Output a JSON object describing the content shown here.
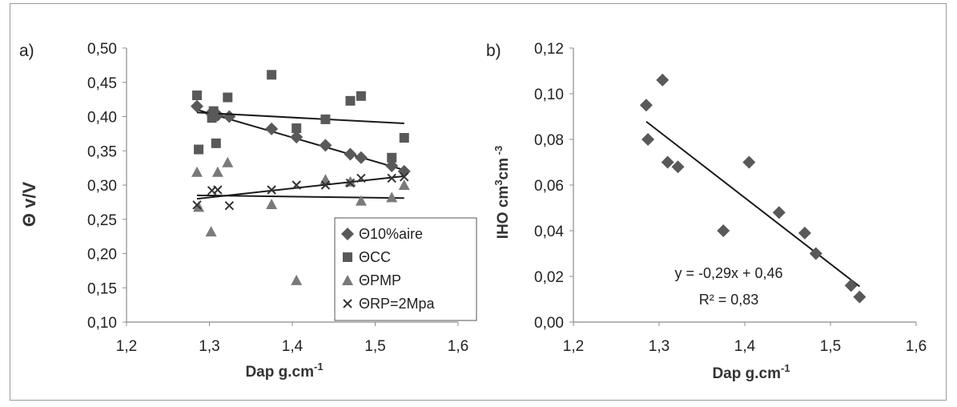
{
  "chart_data": [
    {
      "type": "scatter",
      "panel_label": "a)",
      "xlabel": "Dap g.cm",
      "xlabel_sup": "-1",
      "ylabel": "Θ v/V",
      "xlim": [
        1.2,
        1.6
      ],
      "ylim": [
        0.1,
        0.5
      ],
      "x_ticks": [
        "1,2",
        "1,3",
        "1,4",
        "1,5",
        "1,6"
      ],
      "y_ticks": [
        "0,10",
        "0,15",
        "0,20",
        "0,25",
        "0,30",
        "0,35",
        "0,40",
        "0,45",
        "0,50"
      ],
      "grid": false,
      "legend_position": "bottom-right",
      "series": [
        {
          "name": "Θ10%aire",
          "marker": "diamond",
          "points": [
            [
              1.285,
              0.415
            ],
            [
              1.302,
              0.405
            ],
            [
              1.31,
              0.402
            ],
            [
              1.324,
              0.4
            ],
            [
              1.375,
              0.382
            ],
            [
              1.405,
              0.37
            ],
            [
              1.44,
              0.358
            ],
            [
              1.47,
              0.345
            ],
            [
              1.483,
              0.34
            ],
            [
              1.52,
              0.328
            ],
            [
              1.535,
              0.32
            ]
          ],
          "trend": [
            [
              1.285,
              0.41
            ],
            [
              1.535,
              0.322
            ]
          ]
        },
        {
          "name": "ΘCC",
          "marker": "square",
          "points": [
            [
              1.285,
              0.431
            ],
            [
              1.287,
              0.352
            ],
            [
              1.303,
              0.398
            ],
            [
              1.305,
              0.408
            ],
            [
              1.308,
              0.361
            ],
            [
              1.322,
              0.428
            ],
            [
              1.375,
              0.461
            ],
            [
              1.405,
              0.383
            ],
            [
              1.44,
              0.396
            ],
            [
              1.47,
              0.423
            ],
            [
              1.483,
              0.43
            ],
            [
              1.52,
              0.34
            ],
            [
              1.535,
              0.369
            ]
          ],
          "trend": [
            [
              1.285,
              0.406
            ],
            [
              1.535,
              0.39
            ]
          ]
        },
        {
          "name": "ΘPMP",
          "marker": "triangle",
          "points": [
            [
              1.285,
              0.319
            ],
            [
              1.287,
              0.268
            ],
            [
              1.302,
              0.232
            ],
            [
              1.31,
              0.319
            ],
            [
              1.322,
              0.333
            ],
            [
              1.375,
              0.272
            ],
            [
              1.405,
              0.161
            ],
            [
              1.44,
              0.308
            ],
            [
              1.47,
              0.305
            ],
            [
              1.483,
              0.277
            ],
            [
              1.52,
              0.282
            ],
            [
              1.535,
              0.3
            ]
          ],
          "trend": [
            [
              1.285,
              0.285
            ],
            [
              1.535,
              0.281
            ]
          ]
        },
        {
          "name": "ΘRP=2Mpa",
          "marker": "cross",
          "points": [
            [
              1.285,
              0.271
            ],
            [
              1.303,
              0.292
            ],
            [
              1.31,
              0.293
            ],
            [
              1.324,
              0.27
            ],
            [
              1.375,
              0.293
            ],
            [
              1.405,
              0.3
            ],
            [
              1.44,
              0.3
            ],
            [
              1.47,
              0.303
            ],
            [
              1.483,
              0.31
            ],
            [
              1.52,
              0.31
            ],
            [
              1.535,
              0.312
            ]
          ],
          "trend": [
            [
              1.285,
              0.28
            ],
            [
              1.535,
              0.313
            ]
          ]
        }
      ]
    },
    {
      "type": "scatter",
      "panel_label": "b)",
      "xlabel": "Dap g.cm",
      "xlabel_sup": "-1",
      "ylabel": "IHO  cm",
      "ylabel_sup1": "3",
      "ylabel_mid": "cm",
      "ylabel_sup2": " -3",
      "xlim": [
        1.2,
        1.6
      ],
      "ylim": [
        0.0,
        0.12
      ],
      "x_ticks": [
        "1,2",
        "1,3",
        "1,4",
        "1,5",
        "1,6"
      ],
      "y_ticks": [
        "0,00",
        "0,02",
        "0,04",
        "0,06",
        "0,08",
        "0,10",
        "0,12"
      ],
      "grid": false,
      "equation": "y = -0,29x + 0,46",
      "r2_label": "R² = 0,83",
      "series": [
        {
          "name": "",
          "marker": "diamond",
          "points": [
            [
              1.285,
              0.095
            ],
            [
              1.287,
              0.08
            ],
            [
              1.304,
              0.106
            ],
            [
              1.31,
              0.07
            ],
            [
              1.322,
              0.068
            ],
            [
              1.375,
              0.04
            ],
            [
              1.405,
              0.07
            ],
            [
              1.44,
              0.048
            ],
            [
              1.47,
              0.039
            ],
            [
              1.483,
              0.03
            ],
            [
              1.524,
              0.016
            ],
            [
              1.534,
              0.011
            ]
          ],
          "trend": [
            [
              1.285,
              0.0878
            ],
            [
              1.534,
              0.0156
            ]
          ]
        }
      ]
    }
  ],
  "colors": {
    "marker": "#595959",
    "trend": "#1a1a1a",
    "axis": "#8c8c8c",
    "text": "#222222"
  }
}
